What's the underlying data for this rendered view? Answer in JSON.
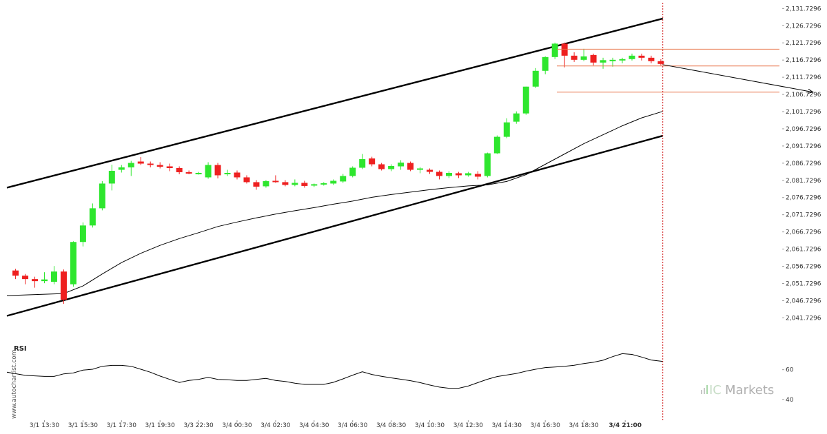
{
  "colors": {
    "up": "#2ee62e",
    "down": "#ee2020",
    "channel": "#000000",
    "ma": "#000000",
    "target_line": "#e8744a",
    "arrow": "#000000",
    "vline": "#d22020"
  },
  "chart_data": {
    "type": "candlestick",
    "price_axis": {
      "ticks": [
        "2,131.7296",
        "2,126.7296",
        "2,121.7296",
        "2,116.7296",
        "2,111.7296",
        "2,106.7296",
        "2,101.7296",
        "2,096.7296",
        "2,091.7296",
        "2,086.7296",
        "2,081.7296",
        "2,076.7296",
        "2,071.7296",
        "2,066.7296",
        "2,061.7296",
        "2,056.7296",
        "2,051.7296",
        "2,046.7296",
        "2,041.7296"
      ],
      "range": [
        2040.0,
        2132.8
      ]
    },
    "time_axis": {
      "ticks": [
        "3/1 13:30",
        "3/1 15:30",
        "3/1 17:30",
        "3/1 19:30",
        "3/3 22:30",
        "3/4 00:30",
        "3/4 02:30",
        "3/4 04:30",
        "3/4 06:30",
        "3/4 08:30",
        "3/4 10:30",
        "3/4 12:30",
        "3/4 14:30",
        "3/4 16:30",
        "3/4 18:30",
        "3/4 21:00"
      ],
      "tick_index": [
        3,
        7,
        11,
        15,
        19,
        23,
        27,
        31,
        35,
        39,
        43,
        47,
        51,
        55,
        59,
        63.3
      ],
      "highlight": "3/4 21:00",
      "index_range": [
        -0.9,
        79.6
      ]
    },
    "candles": [
      {
        "o": 2055.5,
        "h": 2056.0,
        "l": 2053.0,
        "c": 2054.0
      },
      {
        "o": 2054.0,
        "h": 2054.5,
        "l": 2051.5,
        "c": 2053.0
      },
      {
        "o": 2053.0,
        "h": 2053.7,
        "l": 2050.5,
        "c": 2052.4
      },
      {
        "o": 2052.4,
        "h": 2055.0,
        "l": 2051.8,
        "c": 2052.9
      },
      {
        "o": 2052.2,
        "h": 2056.8,
        "l": 2051.5,
        "c": 2055.2
      },
      {
        "o": 2055.2,
        "h": 2055.8,
        "l": 2045.8,
        "c": 2047.0
      },
      {
        "o": 2051.5,
        "h": 2064.0,
        "l": 2050.8,
        "c": 2063.8
      },
      {
        "o": 2063.8,
        "h": 2069.5,
        "l": 2062.5,
        "c": 2068.6
      },
      {
        "o": 2068.6,
        "h": 2075.0,
        "l": 2068.0,
        "c": 2073.6
      },
      {
        "o": 2073.6,
        "h": 2081.5,
        "l": 2073.0,
        "c": 2080.8
      },
      {
        "o": 2080.8,
        "h": 2086.3,
        "l": 2078.8,
        "c": 2084.5
      },
      {
        "o": 2084.8,
        "h": 2086.2,
        "l": 2084.0,
        "c": 2085.5
      },
      {
        "o": 2085.5,
        "h": 2087.4,
        "l": 2083.0,
        "c": 2086.8
      },
      {
        "o": 2087.2,
        "h": 2088.5,
        "l": 2086.2,
        "c": 2086.6
      },
      {
        "o": 2086.6,
        "h": 2087.2,
        "l": 2085.5,
        "c": 2086.2
      },
      {
        "o": 2086.2,
        "h": 2087.0,
        "l": 2085.2,
        "c": 2085.7
      },
      {
        "o": 2085.8,
        "h": 2086.6,
        "l": 2084.4,
        "c": 2085.3
      },
      {
        "o": 2085.3,
        "h": 2085.8,
        "l": 2083.5,
        "c": 2084.1
      },
      {
        "o": 2084.1,
        "h": 2084.6,
        "l": 2083.5,
        "c": 2083.9
      },
      {
        "o": 2083.8,
        "h": 2084.2,
        "l": 2083.4,
        "c": 2083.9
      },
      {
        "o": 2082.6,
        "h": 2087.0,
        "l": 2082.2,
        "c": 2086.2
      },
      {
        "o": 2086.2,
        "h": 2086.8,
        "l": 2082.3,
        "c": 2083.2
      },
      {
        "o": 2083.8,
        "h": 2084.8,
        "l": 2083.0,
        "c": 2083.9
      },
      {
        "o": 2084.0,
        "h": 2084.6,
        "l": 2082.0,
        "c": 2082.6
      },
      {
        "o": 2082.6,
        "h": 2083.2,
        "l": 2080.8,
        "c": 2081.2
      },
      {
        "o": 2081.2,
        "h": 2081.8,
        "l": 2079.0,
        "c": 2079.9
      },
      {
        "o": 2080.0,
        "h": 2081.8,
        "l": 2079.6,
        "c": 2081.5
      },
      {
        "o": 2081.6,
        "h": 2083.2,
        "l": 2081.0,
        "c": 2081.2
      },
      {
        "o": 2081.2,
        "h": 2081.8,
        "l": 2080.0,
        "c": 2080.4
      },
      {
        "o": 2080.4,
        "h": 2082.0,
        "l": 2080.0,
        "c": 2081.0
      },
      {
        "o": 2081.0,
        "h": 2081.6,
        "l": 2079.6,
        "c": 2080.1
      },
      {
        "o": 2080.2,
        "h": 2080.8,
        "l": 2079.8,
        "c": 2080.6
      },
      {
        "o": 2080.6,
        "h": 2081.2,
        "l": 2080.2,
        "c": 2080.9
      },
      {
        "o": 2080.8,
        "h": 2082.0,
        "l": 2080.4,
        "c": 2081.6
      },
      {
        "o": 2081.4,
        "h": 2083.6,
        "l": 2081.0,
        "c": 2083.0
      },
      {
        "o": 2083.0,
        "h": 2085.8,
        "l": 2082.6,
        "c": 2085.4
      },
      {
        "o": 2085.4,
        "h": 2089.4,
        "l": 2085.0,
        "c": 2087.9
      },
      {
        "o": 2088.1,
        "h": 2088.6,
        "l": 2085.8,
        "c": 2086.4
      },
      {
        "o": 2086.4,
        "h": 2086.8,
        "l": 2084.6,
        "c": 2085.0
      },
      {
        "o": 2085.0,
        "h": 2086.4,
        "l": 2084.4,
        "c": 2085.9
      },
      {
        "o": 2085.8,
        "h": 2087.6,
        "l": 2084.8,
        "c": 2086.9
      },
      {
        "o": 2086.8,
        "h": 2087.2,
        "l": 2084.4,
        "c": 2084.8
      },
      {
        "o": 2084.8,
        "h": 2085.6,
        "l": 2083.8,
        "c": 2085.2
      },
      {
        "o": 2084.8,
        "h": 2085.2,
        "l": 2083.6,
        "c": 2084.2
      },
      {
        "o": 2084.2,
        "h": 2084.6,
        "l": 2082.0,
        "c": 2083.0
      },
      {
        "o": 2083.0,
        "h": 2084.4,
        "l": 2082.4,
        "c": 2083.9
      },
      {
        "o": 2083.8,
        "h": 2084.2,
        "l": 2082.4,
        "c": 2083.2
      },
      {
        "o": 2083.2,
        "h": 2084.2,
        "l": 2082.8,
        "c": 2083.8
      },
      {
        "o": 2083.6,
        "h": 2084.4,
        "l": 2082.0,
        "c": 2082.8
      },
      {
        "o": 2083.0,
        "h": 2089.8,
        "l": 2082.6,
        "c": 2089.6
      },
      {
        "o": 2089.6,
        "h": 2094.8,
        "l": 2089.4,
        "c": 2094.4
      },
      {
        "o": 2094.4,
        "h": 2099.8,
        "l": 2094.0,
        "c": 2098.6
      },
      {
        "o": 2098.8,
        "h": 2101.8,
        "l": 2098.2,
        "c": 2101.2
      },
      {
        "o": 2101.2,
        "h": 2109.0,
        "l": 2100.8,
        "c": 2109.0
      },
      {
        "o": 2109.0,
        "h": 2114.4,
        "l": 2108.6,
        "c": 2113.6
      },
      {
        "o": 2113.6,
        "h": 2117.8,
        "l": 2112.6,
        "c": 2117.6
      },
      {
        "o": 2117.6,
        "h": 2121.8,
        "l": 2117.0,
        "c": 2121.5
      },
      {
        "o": 2121.5,
        "h": 2121.8,
        "l": 2114.6,
        "c": 2118.0
      },
      {
        "o": 2118.0,
        "h": 2119.0,
        "l": 2116.2,
        "c": 2116.8
      },
      {
        "o": 2116.8,
        "h": 2120.0,
        "l": 2116.4,
        "c": 2117.8
      },
      {
        "o": 2118.2,
        "h": 2118.6,
        "l": 2115.2,
        "c": 2116.0
      },
      {
        "o": 2116.0,
        "h": 2117.4,
        "l": 2114.2,
        "c": 2116.7
      },
      {
        "o": 2116.7,
        "h": 2117.4,
        "l": 2114.8,
        "c": 2116.8
      },
      {
        "o": 2116.8,
        "h": 2117.4,
        "l": 2115.8,
        "c": 2117.0
      },
      {
        "o": 2117.0,
        "h": 2118.6,
        "l": 2116.6,
        "c": 2118.0
      },
      {
        "o": 2118.0,
        "h": 2118.6,
        "l": 2116.6,
        "c": 2117.4
      },
      {
        "o": 2117.4,
        "h": 2118.0,
        "l": 2115.8,
        "c": 2116.4
      },
      {
        "o": 2116.4,
        "h": 2117.0,
        "l": 2115.2,
        "c": 2115.6
      }
    ],
    "moving_average": [
      [
        -0.9,
        2048.2
      ],
      [
        5,
        2048.8
      ],
      [
        7,
        2051.0
      ],
      [
        9,
        2054.5
      ],
      [
        11,
        2057.8
      ],
      [
        13,
        2060.5
      ],
      [
        15,
        2062.8
      ],
      [
        17,
        2064.8
      ],
      [
        19,
        2066.5
      ],
      [
        21,
        2068.3
      ],
      [
        23,
        2069.6
      ],
      [
        25,
        2070.8
      ],
      [
        27,
        2071.9
      ],
      [
        29,
        2072.9
      ],
      [
        31,
        2073.8
      ],
      [
        33,
        2074.8
      ],
      [
        35,
        2075.7
      ],
      [
        37,
        2076.8
      ],
      [
        39,
        2077.6
      ],
      [
        41,
        2078.3
      ],
      [
        43,
        2079.0
      ],
      [
        45,
        2079.6
      ],
      [
        47,
        2080.1
      ],
      [
        49,
        2080.4
      ],
      [
        51,
        2081.4
      ],
      [
        53,
        2083.4
      ],
      [
        55,
        2086.4
      ],
      [
        57,
        2089.4
      ],
      [
        59,
        2092.4
      ],
      [
        61,
        2095.0
      ],
      [
        63,
        2097.6
      ],
      [
        65,
        2099.9
      ],
      [
        67.2,
        2101.8
      ]
    ],
    "channel": {
      "upper": [
        [
          -0.9,
          2079.6
        ],
        [
          67.2,
          2128.8
        ]
      ],
      "lower": [
        [
          -0.9,
          2042.3
        ],
        [
          67.2,
          2094.7
        ]
      ]
    },
    "projection": {
      "from": [
        67.2,
        2115.4
      ],
      "to": [
        82.8,
        2107.4
      ],
      "levels": [
        2119.9,
        2115.0,
        2107.4
      ],
      "level_start": 56.2
    },
    "rsi": {
      "label": "RSI",
      "ticks": [
        "60",
        "40"
      ],
      "tick_values": [
        60,
        40
      ],
      "range": [
        26.0,
        77.0
      ],
      "values": [
        [
          -0.9,
          58.3
        ],
        [
          1,
          56.2
        ],
        [
          3,
          55.5
        ],
        [
          4,
          55.5
        ],
        [
          5,
          57.2
        ],
        [
          6,
          57.8
        ],
        [
          7,
          59.7
        ],
        [
          8,
          60.3
        ],
        [
          9,
          62.3
        ],
        [
          10,
          62.9
        ],
        [
          11,
          62.9
        ],
        [
          12,
          62.3
        ],
        [
          13,
          60.3
        ],
        [
          14,
          58.3
        ],
        [
          15,
          55.7
        ],
        [
          16,
          53.5
        ],
        [
          17,
          51.4
        ],
        [
          18,
          52.8
        ],
        [
          19,
          53.5
        ],
        [
          20,
          54.9
        ],
        [
          21,
          53.5
        ],
        [
          22,
          53.2
        ],
        [
          23,
          52.8
        ],
        [
          24,
          52.8
        ],
        [
          25,
          53.5
        ],
        [
          26,
          54.2
        ],
        [
          27,
          52.8
        ],
        [
          28,
          52.1
        ],
        [
          29,
          50.9
        ],
        [
          30,
          50.1
        ],
        [
          31,
          50.1
        ],
        [
          32,
          50.1
        ],
        [
          33,
          51.5
        ],
        [
          34,
          53.8
        ],
        [
          35,
          56.3
        ],
        [
          36,
          58.6
        ],
        [
          37,
          56.8
        ],
        [
          38,
          55.6
        ],
        [
          39,
          54.5
        ],
        [
          40,
          53.6
        ],
        [
          41,
          52.6
        ],
        [
          42,
          51.3
        ],
        [
          43,
          49.7
        ],
        [
          44,
          48.3
        ],
        [
          45,
          47.5
        ],
        [
          46,
          47.5
        ],
        [
          47,
          49.0
        ],
        [
          48,
          51.3
        ],
        [
          49,
          53.6
        ],
        [
          50,
          55.4
        ],
        [
          51,
          56.4
        ],
        [
          52,
          57.5
        ],
        [
          53,
          59.0
        ],
        [
          54,
          60.3
        ],
        [
          55,
          61.4
        ],
        [
          56,
          61.8
        ],
        [
          57,
          62.3
        ],
        [
          58,
          63.0
        ],
        [
          59,
          64.1
        ],
        [
          60,
          65.0
        ],
        [
          61,
          66.4
        ],
        [
          62,
          68.8
        ],
        [
          63,
          70.8
        ],
        [
          64,
          70.3
        ],
        [
          65,
          68.5
        ],
        [
          66,
          66.5
        ],
        [
          67.2,
          65.6
        ]
      ]
    }
  },
  "watermark": "www.autochartist.com",
  "brand": {
    "prefix": "IC",
    "name": "Markets"
  }
}
